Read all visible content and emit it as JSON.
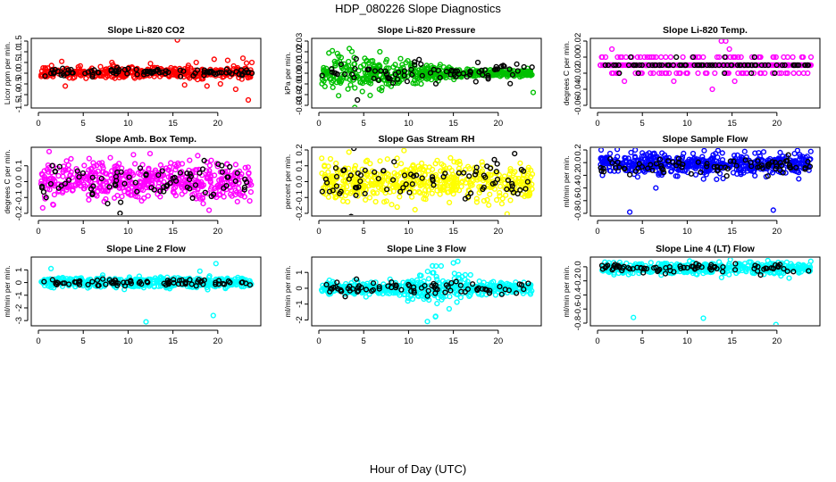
{
  "figure": {
    "title": "HDP_080226  Slope Diagnostics",
    "xlabel": "Hour of Day (UTC)"
  },
  "chart_data": [
    {
      "type": "scatter",
      "id": "co2",
      "title": "Slope Li-820 CO2",
      "ylabel": "Licor ppm per min.",
      "xlim": [
        0,
        24
      ],
      "ylim": [
        -1.5,
        1.5
      ],
      "xticks": [
        0,
        5,
        10,
        15,
        20
      ],
      "yticks": [
        -1.5,
        -1,
        -0.5,
        0,
        0.5,
        1,
        1.5
      ],
      "ytick_labels": [
        "-1.5",
        "-1.0",
        "-0.5",
        "0.0",
        "0.5",
        "1.0",
        "1.5"
      ],
      "series": [
        {
          "name": "all",
          "color": "#ff0000",
          "center": [
            [
              0,
              0.02
            ],
            [
              24,
              0.02
            ]
          ],
          "spread": 0.12,
          "n": 420,
          "x": [
            2.6,
            3.0,
            8.2,
            12.5,
            15.5,
            16.3,
            17.6,
            18.8,
            19.6,
            20.3,
            21.1,
            22.0,
            22.8,
            23.4,
            23.8
          ],
          "y": [
            0.55,
            -0.6,
            0.5,
            0.45,
            1.55,
            -0.55,
            0.5,
            -0.6,
            0.65,
            -0.5,
            0.6,
            -0.75,
            0.7,
            -1.25,
            0.5
          ]
        },
        {
          "name": "hourly",
          "color": "#000000",
          "center": [
            [
              0,
              0.05
            ],
            [
              24,
              0.05
            ]
          ],
          "spread": 0.1,
          "n": 90,
          "x": [
            23.8
          ],
          "y": [
            0.0
          ]
        }
      ]
    },
    {
      "type": "scatter",
      "id": "pressure",
      "title": "Slope Li-820 Pressure",
      "ylabel": "kPa per min.",
      "xlim": [
        0,
        24
      ],
      "ylim": [
        -0.03,
        0.03
      ],
      "xticks": [
        0,
        5,
        10,
        15,
        20
      ],
      "yticks": [
        -0.03,
        -0.02,
        -0.01,
        0.0,
        0.01,
        0.02,
        0.03
      ],
      "ytick_labels": [
        "-0.03",
        "-0.02",
        "-0.01",
        "0.00",
        "0.01",
        "0.02",
        "0.03"
      ],
      "series": [
        {
          "name": "all",
          "color": "#00c000",
          "center": [
            [
              0,
              0.0
            ],
            [
              24,
              0.0
            ]
          ],
          "spread": [
            [
              0,
              0.006
            ],
            [
              4,
              0.009
            ],
            [
              8,
              0.008
            ],
            [
              12,
              0.004
            ],
            [
              16,
              0.002
            ],
            [
              24,
              0.0015
            ]
          ],
          "n": 480,
          "x": [
            1.5,
            2.2,
            3.4,
            4.0,
            6.8,
            11.4,
            23.9
          ],
          "y": [
            0.021,
            -0.021,
            0.023,
            -0.032,
            0.02,
            -0.01,
            -0.018
          ]
        },
        {
          "name": "hourly",
          "color": "#000000",
          "center": [
            [
              0,
              0.0
            ],
            [
              24,
              0.0
            ]
          ],
          "spread": 0.005,
          "n": 80,
          "x": [
            4.3
          ],
          "y": [
            -0.025
          ]
        }
      ]
    },
    {
      "type": "scatter",
      "id": "temp",
      "title": "Slope Li-820 Temp.",
      "ylabel": "degrees C per min.",
      "xlim": [
        0,
        24
      ],
      "ylim": [
        -0.06,
        0.02
      ],
      "xticks": [
        0,
        5,
        10,
        15,
        20
      ],
      "yticks": [
        -0.06,
        -0.04,
        -0.02,
        0.0,
        0.02
      ],
      "ytick_labels": [
        "-0.06",
        "-0.04",
        "-0.02",
        "0.00",
        "0.02"
      ],
      "series": [
        {
          "name": "all",
          "color": "#ff00ff",
          "center": [
            [
              0,
              -0.01
            ],
            [
              24,
              -0.01
            ]
          ],
          "spread": 0.004,
          "n": 500,
          "quantize": 0.01,
          "x": [
            1.6,
            3.0,
            13.8,
            14.3,
            14.7,
            12.8,
            15.3,
            8.5
          ],
          "y": [
            0.01,
            -0.03,
            0.02,
            0.02,
            0.01,
            -0.04,
            -0.03,
            -0.03
          ]
        },
        {
          "name": "hourly",
          "color": "#000000",
          "center": [
            [
              0,
              -0.01
            ],
            [
              24,
              -0.01
            ]
          ],
          "spread": 0.003,
          "n": 80,
          "quantize": 0.01,
          "x": [],
          "y": []
        }
      ]
    },
    {
      "type": "scatter",
      "id": "boxtemp",
      "title": "Slope Amb. Box Temp.",
      "ylabel": "degrees C per min.",
      "xlim": [
        0,
        24
      ],
      "ylim": [
        -0.2,
        0.2
      ],
      "xticks": [
        0,
        5,
        10,
        15,
        20
      ],
      "yticks": [
        -0.2,
        -0.1,
        0.0,
        0.1
      ],
      "ytick_labels": [
        "-0.2",
        "-0.1",
        "0.0",
        "0.1"
      ],
      "series": [
        {
          "name": "all",
          "color": "#ff00ff",
          "center": [
            [
              0,
              0.0
            ],
            [
              24,
              0.0
            ]
          ],
          "spread": 0.06,
          "n": 520,
          "x": [
            1.2,
            10.6
          ],
          "y": [
            0.19,
            0.17
          ]
        },
        {
          "name": "hourly",
          "color": "#000000",
          "center": [
            [
              0,
              0.0
            ],
            [
              24,
              0.0
            ]
          ],
          "spread": 0.06,
          "n": 80,
          "x": [
            9.1
          ],
          "y": [
            -0.2
          ]
        }
      ]
    },
    {
      "type": "scatter",
      "id": "rh",
      "title": "Slope Gas Stream RH",
      "ylabel": "percent per min.",
      "xlim": [
        0,
        24
      ],
      "ylim": [
        -0.2,
        0.2
      ],
      "xticks": [
        0,
        5,
        10,
        15,
        20
      ],
      "yticks": [
        -0.2,
        -0.1,
        0.0,
        0.1,
        0.2
      ],
      "ytick_labels": [
        "-0.2",
        "-0.1",
        "0.0",
        "0.1",
        "0.2"
      ],
      "series": [
        {
          "name": "all",
          "color": "#ffff00",
          "center": [
            [
              0,
              0.0
            ],
            [
              24,
              0.0
            ]
          ],
          "spread": 0.06,
          "n": 520,
          "x": [],
          "y": []
        },
        {
          "name": "hourly",
          "color": "#000000",
          "center": [
            [
              0,
              0.0
            ],
            [
              24,
              0.0
            ]
          ],
          "spread": 0.06,
          "n": 80,
          "x": [
            3.9,
            3.6
          ],
          "y": [
            0.21,
            -0.22
          ]
        }
      ]
    },
    {
      "type": "scatter",
      "id": "sampleflow",
      "title": "Slope Sample Flow",
      "ylabel": "ml/min per min.",
      "xlim": [
        0,
        24
      ],
      "ylim": [
        -0.8,
        0.2
      ],
      "xticks": [
        0,
        5,
        10,
        15,
        20
      ],
      "yticks": [
        -0.8,
        -0.6,
        -0.4,
        -0.2,
        0.0,
        0.2
      ],
      "ytick_labels": [
        "-0.8",
        "-0.6",
        "-0.4",
        "-0.2",
        "0.0",
        "0.2"
      ],
      "series": [
        {
          "name": "all",
          "color": "#0000ff",
          "center": [
            [
              0,
              -0.02
            ],
            [
              24,
              -0.02
            ]
          ],
          "spread": 0.09,
          "n": 500,
          "x": [
            3.6,
            19.6,
            0.4,
            2.2,
            4.2,
            6.5
          ],
          "y": [
            -0.78,
            -0.75,
            0.2,
            0.21,
            0.2,
            -0.4
          ]
        },
        {
          "name": "hourly",
          "color": "#000000",
          "center": [
            [
              0,
              -0.05
            ],
            [
              24,
              -0.05
            ]
          ],
          "spread": 0.07,
          "n": 80,
          "x": [],
          "y": []
        }
      ]
    },
    {
      "type": "scatter",
      "id": "line2",
      "title": "Slope Line 2 Flow",
      "ylabel": "ml/min per min.",
      "xlim": [
        0,
        24
      ],
      "ylim": [
        -3.2,
        1.8
      ],
      "xticks": [
        0,
        5,
        10,
        15,
        20
      ],
      "yticks": [
        -3,
        -2,
        -1,
        0,
        1
      ],
      "ytick_labels": [
        "-3",
        "-2",
        "-1",
        "0",
        "1"
      ],
      "series": [
        {
          "name": "all",
          "color": "#00ffff",
          "center": [
            [
              0,
              0.0
            ],
            [
              24,
              0.0
            ]
          ],
          "spread": 0.2,
          "n": 480,
          "x": [
            12.0,
            19.5,
            19.8,
            1.4,
            18.0
          ],
          "y": [
            -3.1,
            -2.6,
            1.5,
            1.1,
            0.9
          ]
        },
        {
          "name": "hourly",
          "color": "#000000",
          "center": [
            [
              0,
              0.0
            ],
            [
              24,
              0.0
            ]
          ],
          "spread": 0.12,
          "n": 80,
          "x": [],
          "y": []
        }
      ]
    },
    {
      "type": "scatter",
      "id": "line3",
      "title": "Slope Line 3 Flow",
      "ylabel": "ml/min per min.",
      "xlim": [
        0,
        24
      ],
      "ylim": [
        -2.2,
        1.8
      ],
      "xticks": [
        0,
        5,
        10,
        15,
        20
      ],
      "yticks": [
        -2,
        -1,
        0,
        1
      ],
      "ytick_labels": [
        "-2",
        "-1",
        "0",
        "1"
      ],
      "series": [
        {
          "name": "all",
          "color": "#00ffff",
          "center": [
            [
              0,
              0.0
            ],
            [
              24,
              0.0
            ]
          ],
          "spread": [
            [
              0,
              0.15
            ],
            [
              9,
              0.2
            ],
            [
              11,
              0.45
            ],
            [
              13,
              0.55
            ],
            [
              16,
              0.5
            ],
            [
              18,
              0.2
            ],
            [
              24,
              0.15
            ]
          ],
          "n": 500,
          "x": [
            12.1,
            13.0,
            15.5,
            15.0
          ],
          "y": [
            -2.1,
            -1.8,
            1.7,
            1.6
          ]
        },
        {
          "name": "hourly",
          "color": "#000000",
          "center": [
            [
              0,
              0.0
            ],
            [
              24,
              0.0
            ]
          ],
          "spread": 0.2,
          "n": 80,
          "x": [],
          "y": []
        }
      ]
    },
    {
      "type": "scatter",
      "id": "line4",
      "title": "Slope Line 4 (LT) Flow",
      "ylabel": "ml/min per min.",
      "xlim": [
        0,
        24
      ],
      "ylim": [
        -0.8,
        0.1
      ],
      "xticks": [
        0,
        5,
        10,
        15,
        20
      ],
      "yticks": [
        -0.8,
        -0.6,
        -0.4,
        -0.2,
        0.0
      ],
      "ytick_labels": [
        "-0.8",
        "-0.6",
        "-0.4",
        "-0.2",
        "0.0"
      ],
      "series": [
        {
          "name": "all",
          "color": "#00ffff",
          "center": [
            [
              0,
              -0.02
            ],
            [
              24,
              -0.02
            ]
          ],
          "spread": 0.04,
          "n": 480,
          "x": [
            4.0,
            11.8,
            19.9
          ],
          "y": [
            -0.72,
            -0.73,
            -0.82
          ]
        },
        {
          "name": "hourly",
          "color": "#000000",
          "center": [
            [
              0,
              -0.02
            ],
            [
              24,
              -0.02
            ]
          ],
          "spread": 0.03,
          "n": 80,
          "x": [],
          "y": []
        }
      ]
    }
  ]
}
